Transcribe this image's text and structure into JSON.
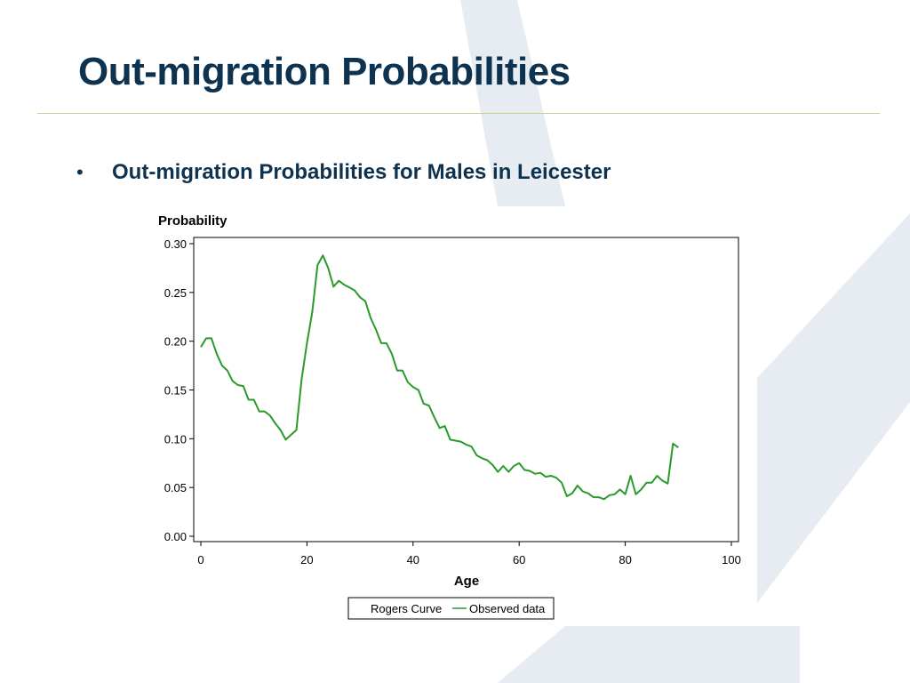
{
  "slide": {
    "title": "Out-migration Probabilities",
    "bullet_symbol": "•",
    "bullet_text": "Out-migration Probabilities for Males in Leicester"
  },
  "colors": {
    "title": "#0e3350",
    "rule": "#c7d08e",
    "background_shape": "#e6ecf1",
    "observed_line": "#2a9a2a"
  },
  "chart_data": {
    "type": "line",
    "title": "",
    "ylabel": "Probability",
    "xlabel": "Age",
    "xlim": [
      0,
      100
    ],
    "ylim": [
      0,
      0.3
    ],
    "x_ticks": [
      0,
      20,
      40,
      60,
      80,
      100
    ],
    "x_tick_labels": [
      "0",
      "20",
      "40",
      "60",
      "80",
      "100"
    ],
    "y_ticks": [
      0,
      0.05,
      0.1,
      0.15,
      0.2,
      0.25,
      0.3
    ],
    "y_tick_labels": [
      "0.00",
      "0.05",
      "0.10",
      "0.15",
      "0.20",
      "0.25",
      "0.30"
    ],
    "grid": false,
    "legend_position": "bottom-center",
    "legend": [
      "Rogers Curve",
      "Observed data"
    ],
    "series": [
      {
        "name": "Rogers Curve",
        "color": "#000000",
        "x": [],
        "y": []
      },
      {
        "name": "Observed data",
        "color": "#2a9a2a",
        "x": [
          0,
          1,
          2,
          3,
          4,
          5,
          6,
          7,
          8,
          9,
          10,
          11,
          12,
          13,
          14,
          15,
          16,
          17,
          18,
          19,
          20,
          21,
          22,
          23,
          24,
          25,
          26,
          27,
          28,
          29,
          30,
          31,
          32,
          33,
          34,
          35,
          36,
          37,
          38,
          39,
          40,
          41,
          42,
          43,
          44,
          45,
          46,
          47,
          48,
          49,
          50,
          51,
          52,
          53,
          54,
          55,
          56,
          57,
          58,
          59,
          60,
          61,
          62,
          63,
          64,
          65,
          66,
          67,
          68,
          69,
          70,
          71,
          72,
          73,
          74,
          75,
          76,
          77,
          78,
          79,
          80,
          81,
          82,
          83,
          84,
          85,
          86,
          87,
          88,
          89,
          90
        ],
        "y": [
          0.194,
          0.203,
          0.203,
          0.187,
          0.175,
          0.17,
          0.159,
          0.155,
          0.154,
          0.14,
          0.14,
          0.128,
          0.128,
          0.124,
          0.116,
          0.109,
          0.099,
          0.104,
          0.109,
          0.161,
          0.198,
          0.23,
          0.278,
          0.288,
          0.275,
          0.256,
          0.262,
          0.258,
          0.255,
          0.252,
          0.245,
          0.241,
          0.224,
          0.212,
          0.198,
          0.198,
          0.187,
          0.17,
          0.17,
          0.158,
          0.153,
          0.15,
          0.136,
          0.134,
          0.122,
          0.111,
          0.113,
          0.099,
          0.098,
          0.097,
          0.094,
          0.092,
          0.083,
          0.08,
          0.078,
          0.073,
          0.066,
          0.072,
          0.066,
          0.072,
          0.075,
          0.068,
          0.067,
          0.064,
          0.065,
          0.061,
          0.062,
          0.06,
          0.055,
          0.041,
          0.044,
          0.052,
          0.046,
          0.044,
          0.04,
          0.04,
          0.038,
          0.042,
          0.043,
          0.048,
          0.043,
          0.062,
          0.043,
          0.048,
          0.055,
          0.055,
          0.062,
          0.057,
          0.054,
          0.095,
          0.091
        ]
      }
    ]
  }
}
